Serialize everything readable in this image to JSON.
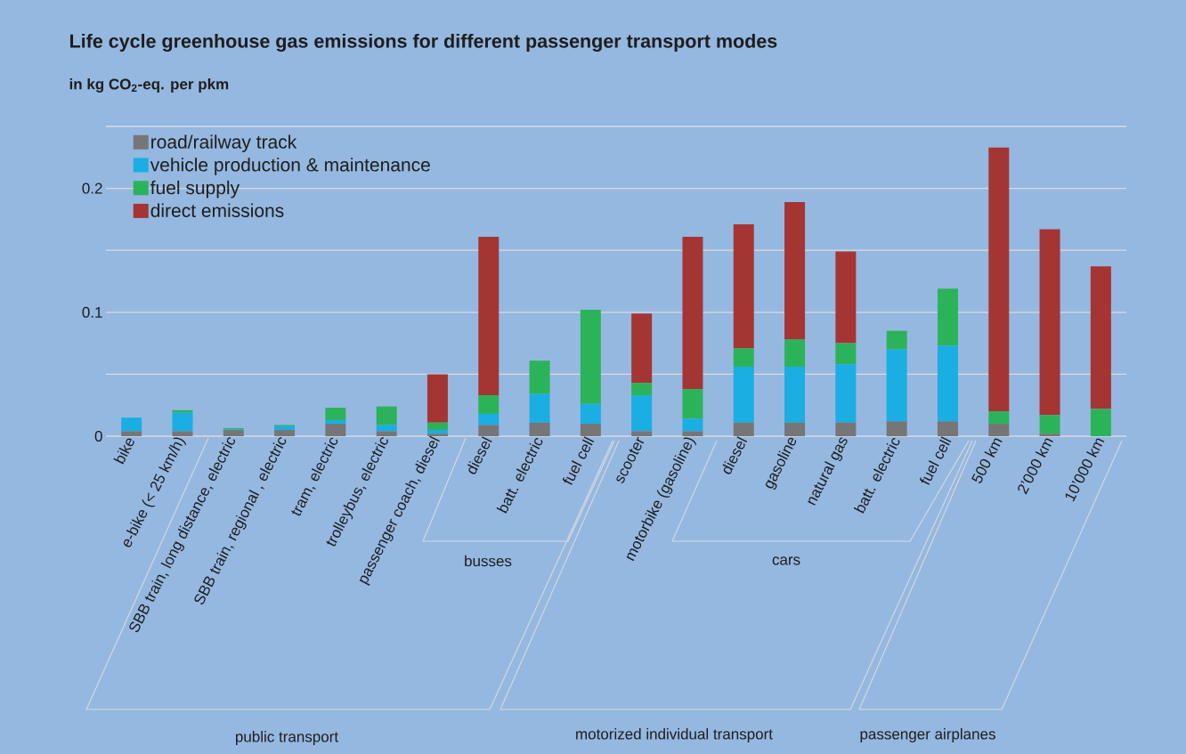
{
  "chart_data": {
    "type": "bar",
    "stacked": true,
    "title": "Life cycle greenhouse gas emissions for different passenger transport modes",
    "subtitle": "in kg CO$_{2}$-eq. per pkm",
    "categories": [
      "bike",
      "e-bike (< 25 km/h)",
      "SBB train, long distance, electric",
      "SBB train, regional , electric",
      "tram, electric",
      "trolleybus, electric",
      "passenger coach, diesel",
      "diesel",
      "batt. electric",
      "fuel cell",
      "scooter",
      "motorbike (gasoline)",
      "diesel",
      "gasoline",
      "natural gas",
      "batt. electric",
      "fuel cell",
      "500 km",
      "2’000 km",
      "10’000 km"
    ],
    "series": [
      {
        "name": "road/railway track",
        "color": "#767676",
        "values": [
          0.004,
          0.004,
          0.005,
          0.005,
          0.01,
          0.004,
          0.002,
          0.009,
          0.011,
          0.01,
          0.004,
          0.004,
          0.011,
          0.011,
          0.011,
          0.012,
          0.012,
          0.01,
          0.002,
          0
        ]
      },
      {
        "name": "vehicle production & maintenance",
        "color": "#1aaee3",
        "values": [
          0.011,
          0.015,
          0.0005,
          0.003,
          0.003,
          0.005,
          0.003,
          0.009,
          0.023,
          0.016,
          0.029,
          0.01,
          0.045,
          0.045,
          0.047,
          0.058,
          0.061,
          0,
          0,
          0
        ]
      },
      {
        "name": "fuel supply",
        "color": "#2bb35a",
        "values": [
          0,
          0.002,
          0.001,
          0.001,
          0.01,
          0.015,
          0.006,
          0.015,
          0.027,
          0.076,
          0.01,
          0.024,
          0.015,
          0.022,
          0.017,
          0.015,
          0.046,
          0.01,
          0.015,
          0.022
        ]
      },
      {
        "name": "direct emissions",
        "color": "#a53533",
        "values": [
          0,
          0,
          0,
          0,
          0,
          0,
          0.039,
          0.128,
          0,
          0,
          0.056,
          0.123,
          0.1,
          0.111,
          0.074,
          0,
          0,
          0.213,
          0.15,
          0.115
        ]
      }
    ],
    "ylim": [
      0,
      0.25
    ],
    "yticks": [
      0,
      {
        "value": 0.05,
        "label": null
      },
      0.1,
      {
        "value": 0.15,
        "label": null
      },
      0.2,
      {
        "value": 0.25,
        "label": null
      }
    ],
    "grid": "y",
    "legend": "top left",
    "annotations": [
      "busses",
      "cars",
      "public transport",
      "motorized individual transport",
      "passenger airplanes"
    ]
  }
}
